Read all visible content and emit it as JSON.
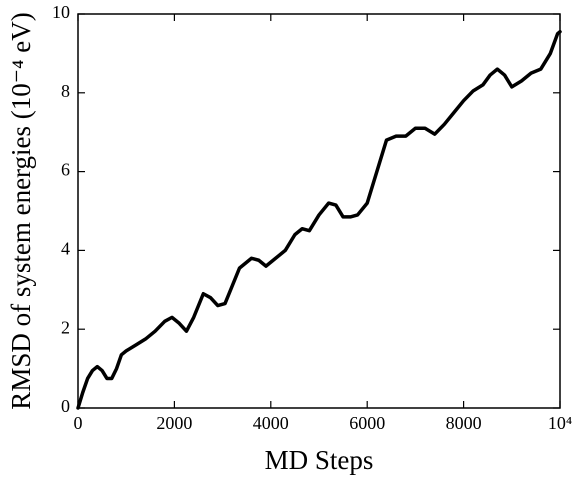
{
  "chart_data": {
    "type": "line",
    "xlabel": "MD Steps",
    "ylabel": "RMSD of system energies (10⁻⁴ eV)",
    "x": [
      0,
      100,
      200,
      300,
      400,
      500,
      600,
      700,
      800,
      900,
      1000,
      1200,
      1400,
      1600,
      1800,
      1950,
      2100,
      2250,
      2400,
      2600,
      2750,
      2900,
      3050,
      3200,
      3350,
      3600,
      3750,
      3900,
      4100,
      4300,
      4500,
      4650,
      4800,
      5000,
      5200,
      5350,
      5500,
      5650,
      5800,
      6000,
      6200,
      6400,
      6600,
      6800,
      7000,
      7200,
      7400,
      7600,
      7800,
      8000,
      8200,
      8400,
      8550,
      8700,
      8850,
      9000,
      9200,
      9400,
      9600,
      9800,
      9950,
      10000
    ],
    "series": [
      {
        "color": "#000000",
        "values": [
          0,
          0.4,
          0.75,
          0.95,
          1.05,
          0.95,
          0.75,
          0.75,
          1.0,
          1.35,
          1.45,
          1.6,
          1.75,
          1.95,
          2.2,
          2.3,
          2.15,
          1.95,
          2.3,
          2.9,
          2.8,
          2.6,
          2.65,
          3.1,
          3.55,
          3.8,
          3.75,
          3.6,
          3.8,
          4.0,
          4.4,
          4.55,
          4.5,
          4.9,
          5.2,
          5.15,
          4.85,
          4.85,
          4.9,
          5.2,
          6.0,
          6.8,
          6.9,
          6.9,
          7.1,
          7.1,
          6.95,
          7.2,
          7.5,
          7.8,
          8.05,
          8.2,
          8.45,
          8.6,
          8.45,
          8.15,
          8.3,
          8.5,
          8.6,
          9.0,
          9.5,
          9.55
        ]
      }
    ],
    "xlim": [
      0,
      10000
    ],
    "xticks": [
      0,
      2000,
      4000,
      6000,
      8000,
      {
        "value": 10000,
        "label": "10⁴"
      }
    ],
    "ylim": [
      0,
      10
    ],
    "yticks": [
      0,
      2,
      4,
      6,
      8,
      10
    ]
  }
}
